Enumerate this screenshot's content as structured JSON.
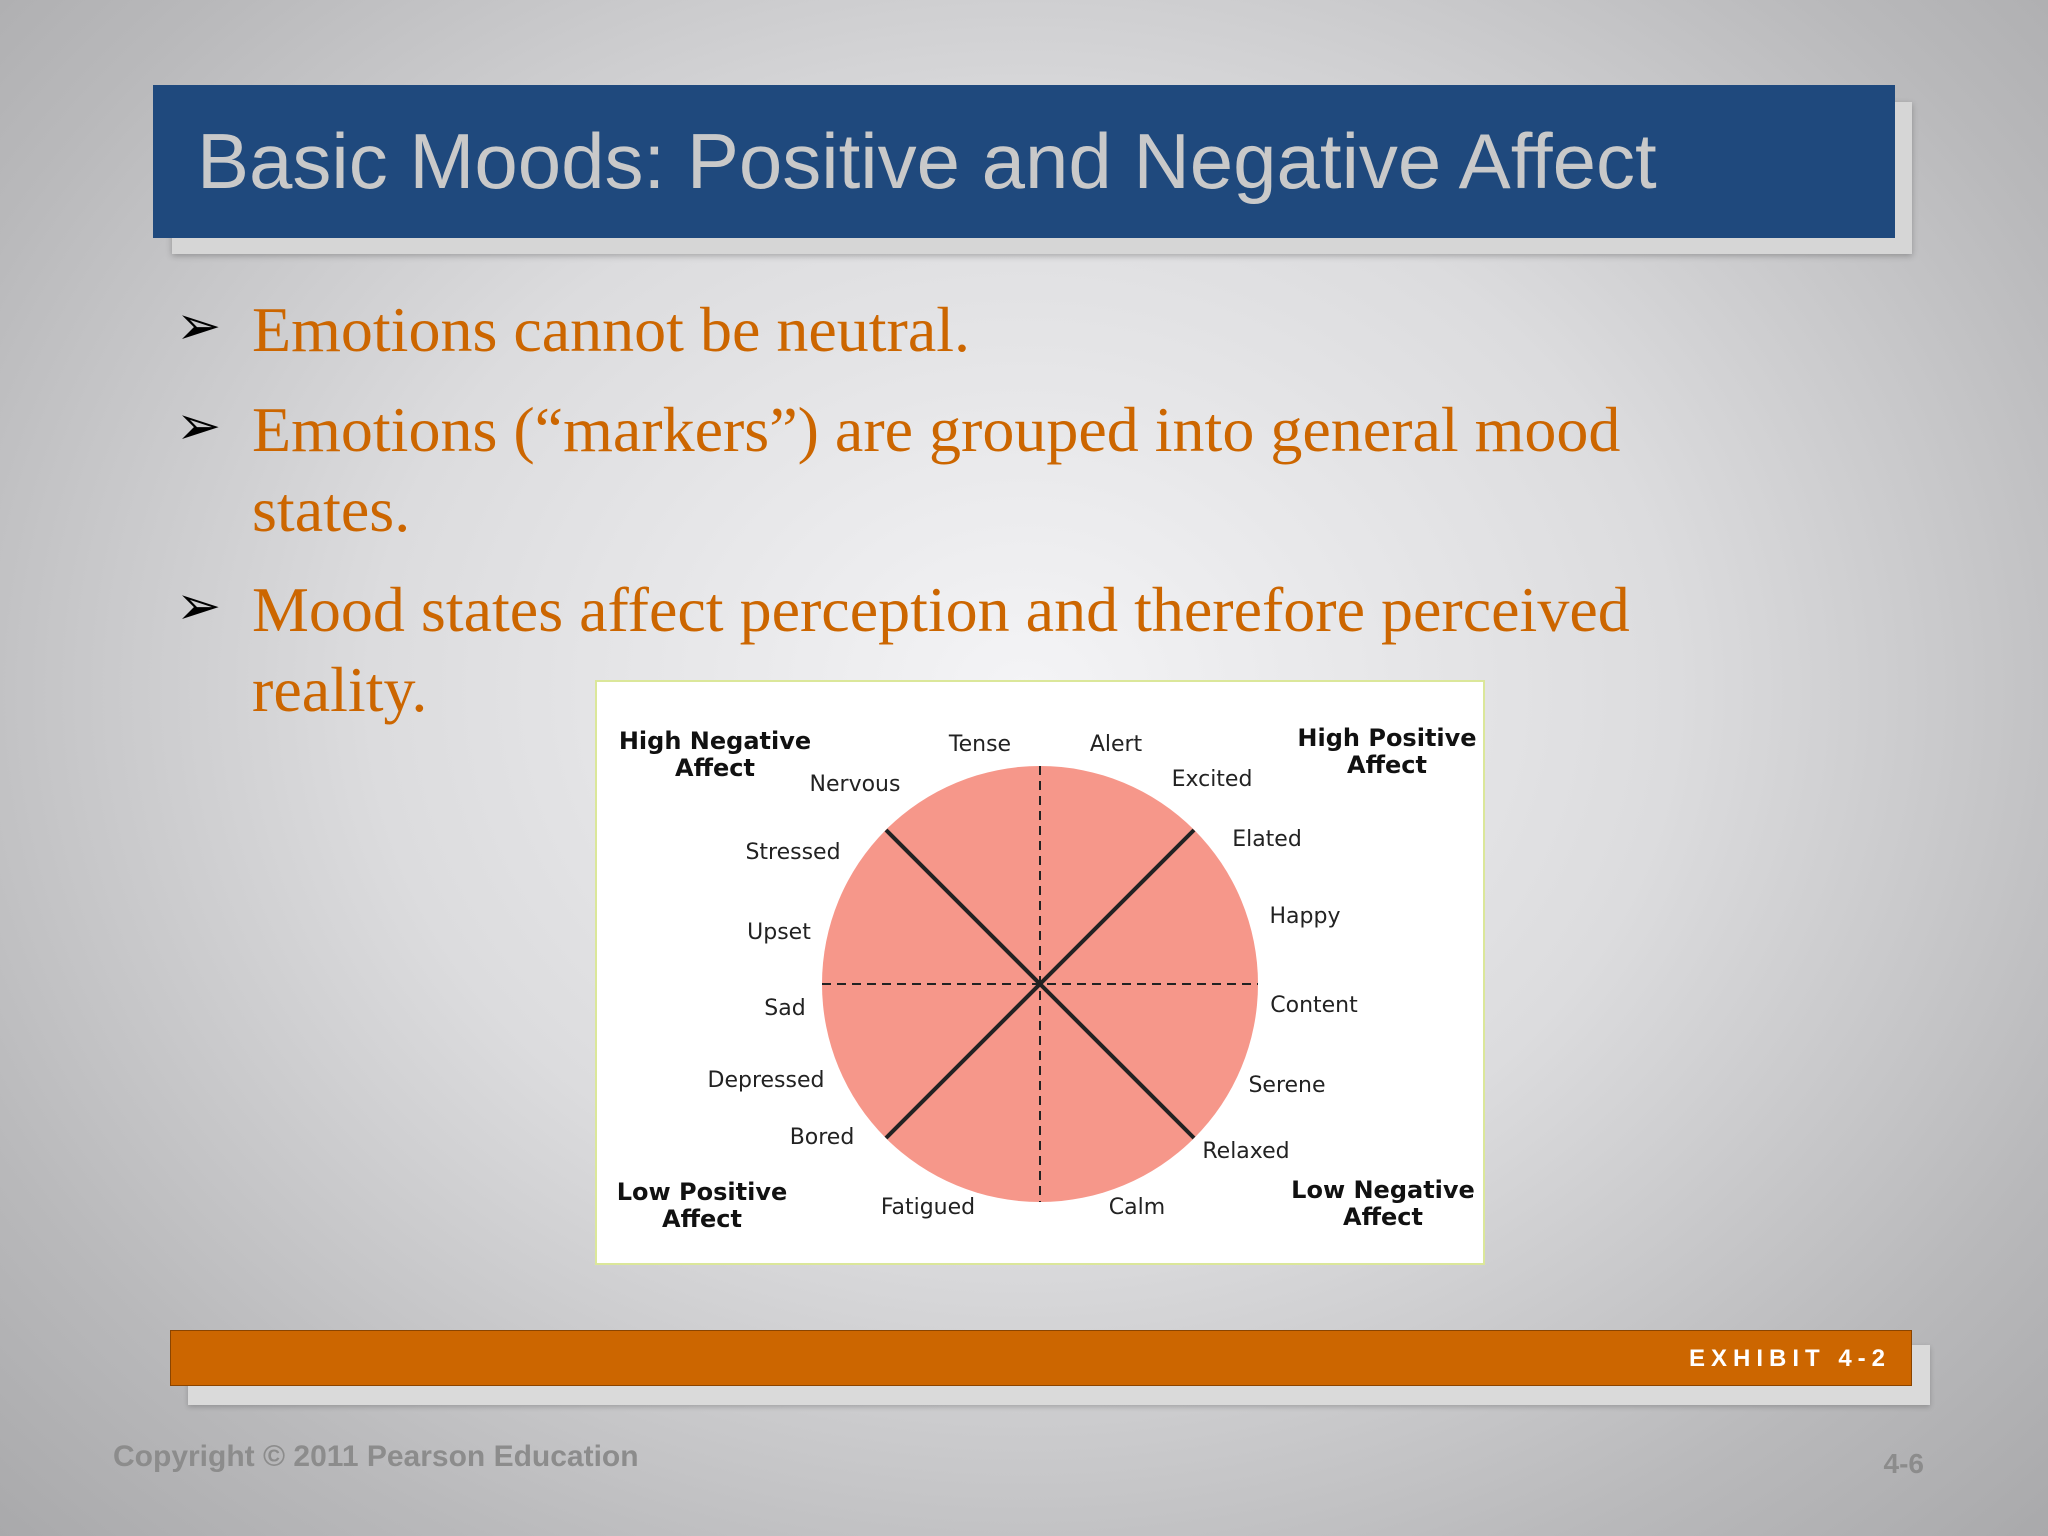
{
  "slide": {
    "title": "Basic Moods: Positive and Negative Affect",
    "bullets": [
      {
        "text": "Emotions cannot be neutral."
      },
      {
        "text": "Emotions (“markers”) are grouped into general mood states."
      },
      {
        "text": "Mood states affect perception and therefore perceived reality."
      }
    ],
    "bullet_icon": "arrow-bullet-icon",
    "exhibit_label": "EXHIBIT 4-2",
    "copyright": "Copyright © 2011 Pearson Education",
    "slide_number": "4-6"
  },
  "diagram": {
    "quadrants": {
      "top_left": [
        "High Negative",
        "Affect"
      ],
      "top_right": [
        "High Positive",
        "Affect"
      ],
      "bottom_left": [
        "Low Positive",
        "Affect"
      ],
      "bottom_right": [
        "Low Negative",
        "Affect"
      ]
    },
    "markers": {
      "tense": "Tense",
      "alert": "Alert",
      "nervous": "Nervous",
      "excited": "Excited",
      "stressed": "Stressed",
      "elated": "Elated",
      "upset": "Upset",
      "happy": "Happy",
      "sad": "Sad",
      "content": "Content",
      "depressed": "Depressed",
      "serene": "Serene",
      "bored": "Bored",
      "relaxed": "Relaxed",
      "fatigued": "Fatigued",
      "calm": "Calm"
    },
    "colors": {
      "circle_fill": "#f6978a",
      "frame_border": "#dbe79a"
    }
  },
  "colors": {
    "title_bar": "#1f497d",
    "bullet_text": "#cc6600",
    "accent_bar": "#cc6600"
  }
}
